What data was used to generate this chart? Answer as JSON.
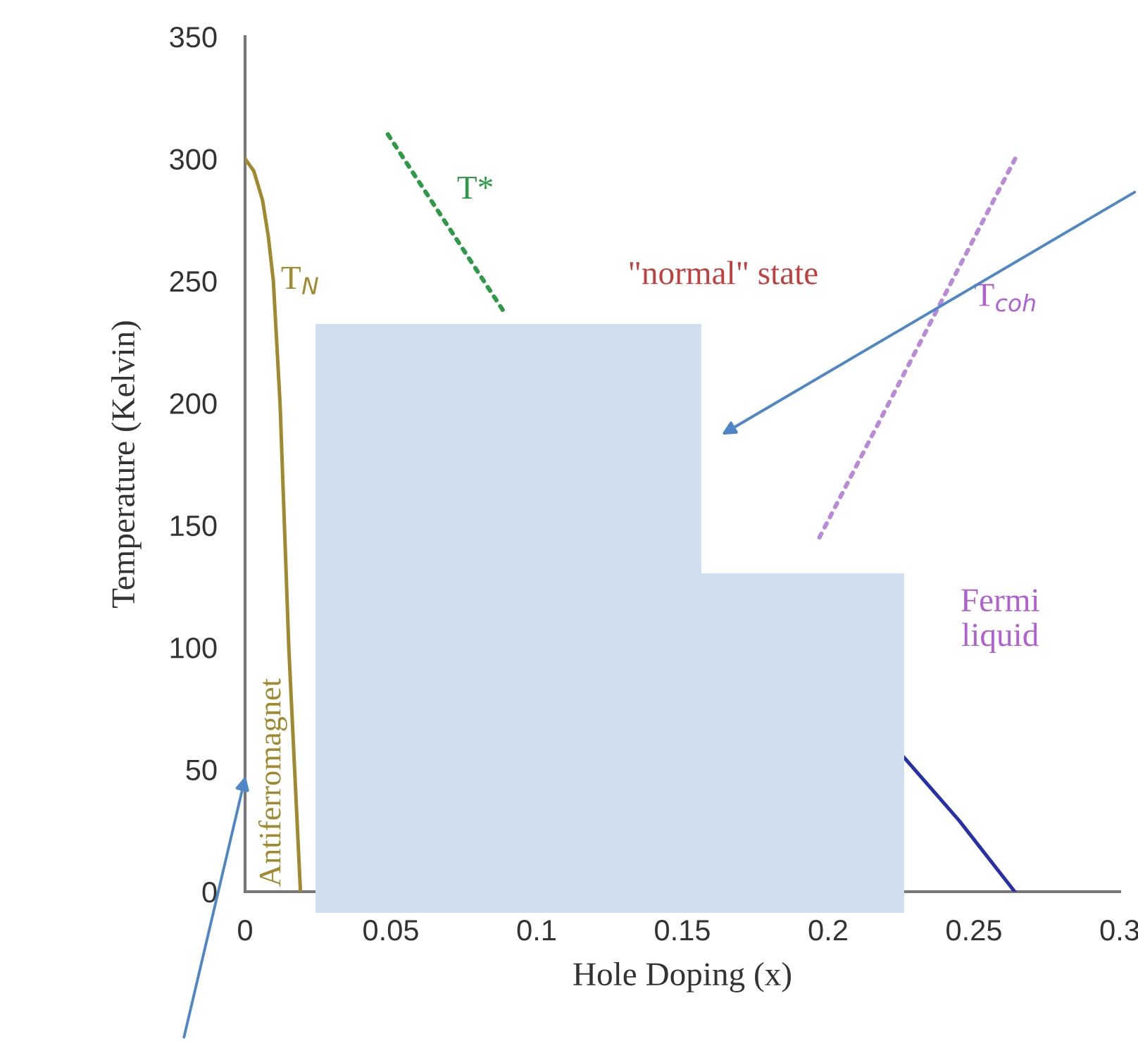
{
  "chart_data": {
    "type": "line",
    "xlabel": "Hole Doping (x)",
    "ylabel": "Temperature (Kelvin)",
    "xlim": [
      0,
      0.3
    ],
    "ylim": [
      0,
      350
    ],
    "xticks": [
      0,
      0.05,
      0.1,
      0.15,
      0.2,
      0.25,
      0.3
    ],
    "yticks": [
      0,
      50,
      100,
      150,
      200,
      250,
      300,
      350
    ],
    "grid": false,
    "legend": false,
    "marker": "none",
    "series": [
      {
        "color": "#a08a30",
        "line_style": "solid",
        "x": [
          0,
          0.003,
          0.006,
          0.008,
          0.0097,
          0.012,
          0.0135,
          0.015,
          0.017,
          0.019
        ],
        "values": [
          300,
          295,
          283,
          268,
          250,
          200,
          150,
          100,
          50,
          0
        ]
      },
      {
        "color": "#2e9a48",
        "line_style": "dotted",
        "x": [
          0.049,
          0.089
        ],
        "values": [
          310,
          237
        ]
      },
      {
        "color": "#b98ad8",
        "line_style": "dotted",
        "x": [
          0.197,
          0.265
        ],
        "values": [
          145,
          302
        ]
      },
      {
        "color": "#2830a8",
        "line_style": "solid",
        "x": [
          0.226,
          0.245,
          0.264
        ],
        "values": [
          55,
          29,
          0
        ]
      }
    ],
    "annotations": [
      "T$_{N}$",
      "T*",
      "\"normal\" state",
      "T$_{coh}$",
      "Fermi\nliquid",
      "Antiferromagnet"
    ]
  }
}
